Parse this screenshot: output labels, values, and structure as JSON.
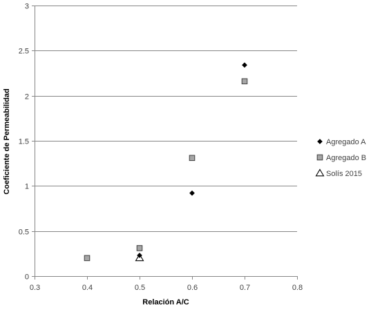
{
  "chart_data": {
    "type": "scatter",
    "title": "",
    "xlabel": "Relación A/C",
    "ylabel": "Coeficiente de Permeabilidad",
    "xlim": [
      0.3,
      0.8
    ],
    "ylim": [
      0,
      3
    ],
    "x_ticks": [
      0.3,
      0.4,
      0.5,
      0.6,
      0.7,
      0.8
    ],
    "x_tick_labels": [
      "0.3",
      "0.4",
      "0.5",
      "0.6",
      "0.7",
      "0.8"
    ],
    "y_ticks": [
      0,
      0.5,
      1,
      1.5,
      2,
      2.5,
      3
    ],
    "y_tick_labels": [
      "0",
      "0.5",
      "1",
      "1.5",
      "2",
      "2.5",
      "3"
    ],
    "grid": "horizontal",
    "legend_position": "right",
    "series": [
      {
        "name": "Agregado A",
        "marker": "diamond",
        "color": "#000000",
        "points": [
          [
            0.5,
            0.23
          ],
          [
            0.6,
            0.92
          ],
          [
            0.7,
            2.34
          ]
        ]
      },
      {
        "name": "Agregado B",
        "marker": "square",
        "color": "#a6a6a6",
        "points": [
          [
            0.4,
            0.2
          ],
          [
            0.5,
            0.31
          ],
          [
            0.6,
            1.31
          ],
          [
            0.7,
            2.16
          ]
        ]
      },
      {
        "name": "Solís 2015",
        "marker": "triangle",
        "color": "#ffffff",
        "points": [
          [
            0.5,
            0.2
          ]
        ]
      }
    ]
  }
}
